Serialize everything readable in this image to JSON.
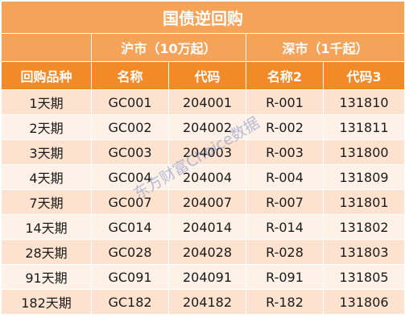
{
  "title": "国债逆回购",
  "groups": {
    "sh": "沪市（10万起）",
    "sz": "深市（1千起）"
  },
  "headers": [
    "回购品种",
    "名称",
    "代码",
    "名称2",
    "代码3"
  ],
  "rows": [
    [
      "1天期",
      "GC001",
      "204001",
      "R-001",
      "131810"
    ],
    [
      "2天期",
      "GC002",
      "204002",
      "R-002",
      "131811"
    ],
    [
      "3天期",
      "GC003",
      "204003",
      "R-003",
      "131800"
    ],
    [
      "4天期",
      "GC004",
      "204004",
      "R-004",
      "131809"
    ],
    [
      "7天期",
      "GC007",
      "204007",
      "R-007",
      "131801"
    ],
    [
      "14天期",
      "GC014",
      "204014",
      "R-014",
      "131802"
    ],
    [
      "28天期",
      "GC028",
      "204028",
      "R-028",
      "131803"
    ],
    [
      "91天期",
      "GC091",
      "204091",
      "R-091",
      "131805"
    ],
    [
      "182天期",
      "GC182",
      "204182",
      "R-182",
      "131806"
    ]
  ],
  "watermark": "东方财富Choice数据",
  "colors": {
    "title_bg": "#f5a358",
    "header_bg": "#f28a28",
    "row_odd": "#fde3cf",
    "row_even": "#fef1e7"
  }
}
